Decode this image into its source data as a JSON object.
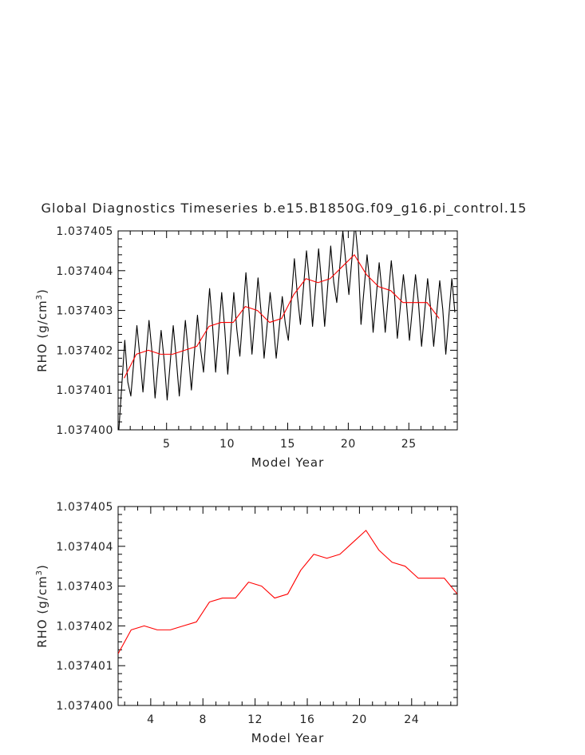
{
  "chart_data": [
    {
      "type": "line",
      "title": "Global Diagnostics Timeseries b.e15.B1850G.f09_g16.pi_control.15",
      "xlabel": "Model Year",
      "ylabel_main": "RHO (g/cm",
      "ylabel_sup": "3",
      "ylabel_close": ")",
      "xlim": [
        1,
        29
      ],
      "ylim": [
        1.0374,
        1.037405
      ],
      "xticks": [
        5,
        10,
        15,
        20,
        25
      ],
      "xtick_labels": [
        "5",
        "10",
        "15",
        "20",
        "25"
      ],
      "yticks": [
        1.0374,
        1.037401,
        1.037402,
        1.037403,
        1.037404,
        1.037405
      ],
      "ytick_labels": [
        "1.037400",
        "1.037401",
        "1.037402",
        "1.037403",
        "1.037404",
        "1.037405"
      ],
      "monthly_peaks": [
        2.25,
        2.62,
        2.75,
        2.5,
        2.62,
        2.75,
        2.88,
        3.55,
        3.45,
        3.45,
        3.95,
        3.82,
        3.45,
        3.35,
        4.3,
        4.5,
        4.55,
        4.62,
        5.0,
        5.2,
        4.4,
        4.2,
        4.25,
        3.9,
        3.9,
        3.8,
        3.75,
        3.8
      ],
      "monthly_troughs": [
        -0.05,
        0.85,
        0.95,
        0.8,
        0.75,
        0.85,
        1.0,
        1.45,
        1.45,
        1.4,
        1.85,
        1.9,
        1.8,
        1.8,
        2.25,
        2.65,
        2.6,
        2.6,
        3.2,
        3.4,
        2.65,
        2.45,
        2.45,
        2.3,
        2.25,
        2.1,
        2.1,
        1.9
      ],
      "series": [
        {
          "name": "",
          "color": "#000000",
          "x": [
            1.1,
            1.35,
            1.55,
            1.8,
            2.1,
            2.55,
            2.95,
            3.55,
            3.95,
            4.55,
            4.95,
            5.55,
            5.95,
            6.55,
            6.95,
            7.55,
            7.95,
            8.55,
            8.95,
            9.55,
            9.95,
            10.55,
            10.95,
            11.55,
            11.95,
            12.55,
            12.95,
            13.55,
            13.95,
            14.55,
            14.95,
            15.55,
            15.95,
            16.55,
            16.95,
            17.55,
            17.95,
            18.55,
            18.95,
            19.55,
            19.95,
            20.55,
            20.95,
            21.55,
            21.95,
            22.55,
            22.95,
            23.55,
            23.95,
            24.55,
            24.95,
            25.55,
            25.95,
            26.55,
            26.95,
            27.55,
            27.95,
            28.55,
            28.9
          ],
          "y": [
            1.0374,
            1.037401,
            1.0374022,
            1.0374019,
            1.0374009,
            1.0374026,
            1.0374009,
            1.0374028,
            1.0374009,
            1.0374025,
            1.0374007,
            1.0374026,
            1.0374008,
            1.0374028,
            1.037401,
            1.0374029,
            1.0374015,
            1.0374036,
            1.0374015,
            1.0374034,
            1.0374014,
            1.0374035,
            1.0374019,
            1.0374039,
            1.0374019,
            1.0374038,
            1.0374018,
            1.0374035,
            1.0374018,
            1.0374034,
            1.0374023,
            1.0374043,
            1.0374027,
            1.0374045,
            1.0374026,
            1.0374045,
            1.0374026,
            1.0374046,
            1.0374032,
            1.037405,
            1.0374034,
            1.0374052,
            1.0374027,
            1.0374044,
            1.0374024,
            1.0374042,
            1.0374025,
            1.0374043,
            1.0374023,
            1.0374039,
            1.0374022,
            1.0374039,
            1.0374021,
            1.0374038,
            1.0374019,
            1.0374035,
            1.0374021,
            1.0374038,
            1.0374038
          ]
        },
        {
          "name": "",
          "color": "#ff0000",
          "x": [
            1.5,
            2.5,
            3.5,
            4.5,
            5.5,
            6.5,
            7.5,
            8.5,
            9.5,
            10.5,
            11.5,
            12.5,
            13.5,
            14.5,
            15.5,
            16.5,
            17.5,
            18.5,
            19.5,
            20.5,
            21.5,
            22.5,
            23.5,
            24.5,
            25.5,
            26.5,
            27.5
          ],
          "y": [
            1.0374013,
            1.0374019,
            1.037402,
            1.0374019,
            1.0374019,
            1.037402,
            1.0374021,
            1.0374026,
            1.0374027,
            1.0374027,
            1.0374031,
            1.037403,
            1.0374027,
            1.0374028,
            1.0374034,
            1.0374038,
            1.0374037,
            1.0374038,
            1.0374041,
            1.0374044,
            1.0374039,
            1.0374036,
            1.0374035,
            1.0374032,
            1.0374032,
            1.0374032,
            1.0374028
          ]
        }
      ]
    },
    {
      "type": "line",
      "xlabel": "Model Year",
      "ylabel_main": "RHO (g/cm",
      "ylabel_sup": "3",
      "ylabel_close": ")",
      "xlim": [
        1.5,
        27.5
      ],
      "ylim": [
        1.0374,
        1.037405
      ],
      "xticks": [
        4,
        8,
        12,
        16,
        20,
        24
      ],
      "xtick_labels": [
        "4",
        "8",
        "12",
        "16",
        "20",
        "24"
      ],
      "yticks": [
        1.0374,
        1.037401,
        1.037402,
        1.037403,
        1.037404,
        1.037405
      ],
      "ytick_labels": [
        "1.037400",
        "1.037401",
        "1.037402",
        "1.037403",
        "1.037404",
        "1.037405"
      ],
      "series": [
        {
          "name": "",
          "color": "#ff0000",
          "x": [
            1.5,
            2.5,
            3.5,
            4.5,
            5.5,
            6.5,
            7.5,
            8.5,
            9.5,
            10.5,
            11.5,
            12.5,
            13.5,
            14.5,
            15.5,
            16.5,
            17.5,
            18.5,
            19.5,
            20.5,
            21.5,
            22.5,
            23.5,
            24.5,
            25.5,
            26.5,
            27.5
          ],
          "y": [
            1.0374013,
            1.0374019,
            1.037402,
            1.0374019,
            1.0374019,
            1.037402,
            1.0374021,
            1.0374026,
            1.0374027,
            1.0374027,
            1.0374031,
            1.037403,
            1.0374027,
            1.0374028,
            1.0374034,
            1.0374038,
            1.0374037,
            1.0374038,
            1.0374041,
            1.0374044,
            1.0374039,
            1.0374036,
            1.0374035,
            1.0374032,
            1.0374032,
            1.0374032,
            1.0374028
          ]
        }
      ]
    }
  ]
}
